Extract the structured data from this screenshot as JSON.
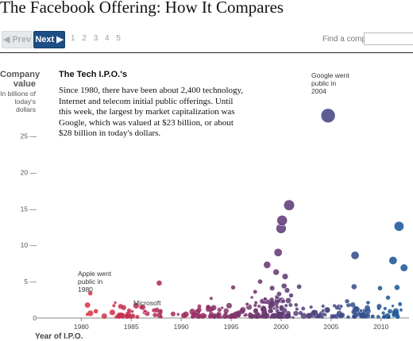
{
  "header": {
    "title": "The Facebook Offering: How It Compares"
  },
  "nav": {
    "prev_label": "◀ Prev",
    "next_label": "Next ▶",
    "pages": [
      "1",
      "2",
      "3",
      "4",
      "5"
    ],
    "current_page": "1",
    "find_label": "Find a company",
    "find_value": ""
  },
  "intro": {
    "heading": "The Tech I.P.O.'s",
    "text": "Since 1980, there have been about 2,400 technology, Internet and telecom initial public offerings. Until this week, the largest by market capitalization was Google, which was valued at $23 billion, or about $28 billion in today's dollars."
  },
  "annotations": {
    "google": "Google went public in 2004",
    "apple": "Apple went public in 1980",
    "microsoft": "Microsoft"
  },
  "chart_data": {
    "type": "scatter",
    "ylabel": "Company value",
    "ylabel_sub": "In billions of today's dollars",
    "xlabel": "Year of I.P.O.",
    "xlim": [
      1976,
      2012.8
    ],
    "ylim": [
      0,
      28
    ],
    "x_ticks": [
      "1980",
      "1985",
      "1990",
      "1995",
      "2000",
      "2005",
      "2010"
    ],
    "y_ticks": [
      "0",
      "5 —",
      "10 —",
      "15 —",
      "20 —",
      "25 —"
    ],
    "grid": false,
    "color_scale": [
      "#e03040",
      "#9c2c60",
      "#5a3e7a",
      "#1a5b9a"
    ],
    "points": [
      {
        "x": 1980.9,
        "y": 3.4,
        "size": 3.0
      },
      {
        "x": 1986.4,
        "y": 0.9,
        "size": 2.2
      },
      {
        "x": 1987.8,
        "y": 4.8,
        "size": 3.6
      },
      {
        "x": 1983.4,
        "y": 2.1,
        "size": 2.0
      },
      {
        "x": 1993.0,
        "y": 2.7,
        "size": 2.3
      },
      {
        "x": 1994.1,
        "y": 1.4,
        "size": 2.0
      },
      {
        "x": 1995.2,
        "y": 4.2,
        "size": 3.0
      },
      {
        "x": 1996.6,
        "y": 1.9,
        "size": 2.4
      },
      {
        "x": 1997.4,
        "y": 3.6,
        "size": 2.8
      },
      {
        "x": 1997.9,
        "y": 5.0,
        "size": 3.2
      },
      {
        "x": 1998.4,
        "y": 2.6,
        "size": 2.6
      },
      {
        "x": 1998.6,
        "y": 7.3,
        "size": 4.6
      },
      {
        "x": 1999.1,
        "y": 4.1,
        "size": 3.4
      },
      {
        "x": 1999.3,
        "y": 1.3,
        "size": 2.0
      },
      {
        "x": 1999.5,
        "y": 6.3,
        "size": 4.0
      },
      {
        "x": 1999.6,
        "y": 2.9,
        "size": 3.0
      },
      {
        "x": 1999.7,
        "y": 9.0,
        "size": 5.2
      },
      {
        "x": 1999.8,
        "y": 3.3,
        "size": 3.2
      },
      {
        "x": 2000.0,
        "y": 12.3,
        "size": 6.4
      },
      {
        "x": 2000.1,
        "y": 13.4,
        "size": 6.6
      },
      {
        "x": 2000.2,
        "y": 2.3,
        "size": 2.8
      },
      {
        "x": 2000.3,
        "y": 4.4,
        "size": 3.6
      },
      {
        "x": 2000.4,
        "y": 5.7,
        "size": 3.9
      },
      {
        "x": 2000.5,
        "y": 1.7,
        "size": 2.4
      },
      {
        "x": 2000.6,
        "y": 3.8,
        "size": 3.4
      },
      {
        "x": 2000.8,
        "y": 15.5,
        "size": 6.8
      },
      {
        "x": 2001.0,
        "y": 3.1,
        "size": 3.0
      },
      {
        "x": 2001.5,
        "y": 1.8,
        "size": 2.6
      },
      {
        "x": 2001.8,
        "y": 4.3,
        "size": 3.2
      },
      {
        "x": 2003.0,
        "y": 1.5,
        "size": 2.4
      },
      {
        "x": 2004.2,
        "y": 1.0,
        "size": 2.2
      },
      {
        "x": 2004.7,
        "y": 27.8,
        "size": 9.0
      },
      {
        "x": 2006.0,
        "y": 1.6,
        "size": 2.4
      },
      {
        "x": 2006.6,
        "y": 2.3,
        "size": 3.0
      },
      {
        "x": 2007.3,
        "y": 4.3,
        "size": 3.6
      },
      {
        "x": 2007.4,
        "y": 8.6,
        "size": 5.2
      },
      {
        "x": 2008.0,
        "y": 1.0,
        "size": 2.2
      },
      {
        "x": 2008.7,
        "y": 2.1,
        "size": 2.6
      },
      {
        "x": 2009.9,
        "y": 4.1,
        "size": 3.2
      },
      {
        "x": 2010.4,
        "y": 1.3,
        "size": 2.4
      },
      {
        "x": 2010.7,
        "y": 2.8,
        "size": 3.0
      },
      {
        "x": 2011.2,
        "y": 7.9,
        "size": 5.2
      },
      {
        "x": 2011.6,
        "y": 4.2,
        "size": 3.6
      },
      {
        "x": 2011.8,
        "y": 12.6,
        "size": 6.2
      },
      {
        "x": 2012.3,
        "y": 6.9,
        "size": 4.8
      },
      {
        "x": 2011.9,
        "y": 1.9,
        "size": 2.8
      }
    ]
  }
}
